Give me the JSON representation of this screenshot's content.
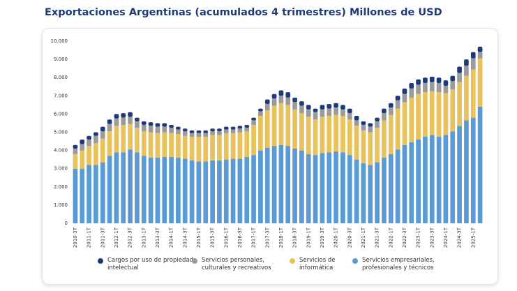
{
  "chart_data": {
    "type": "stacked-bar",
    "title": "Exportaciones Argentinas (acumulados 4 trimestres) Millones de USD",
    "categories": [
      "2010-3T",
      null,
      "2011-1T",
      null,
      "2011-3T",
      null,
      "2012-1T",
      null,
      "2012-3T",
      null,
      "2013-1T",
      null,
      "2013-3T",
      null,
      "2014-1T",
      null,
      "2014-3T",
      null,
      "2015-1T",
      null,
      "2015-3T",
      null,
      "2016-1T",
      null,
      "2016-3T",
      null,
      "2017-1T",
      null,
      "2017-3T",
      null,
      "2018-1T",
      null,
      "2018-3T",
      null,
      "2019-1T",
      null,
      "2019-3T",
      null,
      "2020-1T",
      null,
      "2020-3T",
      null,
      "2021-1T",
      null,
      "2021-3T",
      null,
      "2022-1T",
      null,
      "2022-3T",
      null,
      "2023-1T",
      null,
      "2023-3T",
      null,
      "2024-1T",
      null,
      "2024-3T",
      null,
      "2025-1T",
      null
    ],
    "series": [
      {
        "name": "Servicios empresariales, profesionales y técnicos",
        "color": "#5b9bd5",
        "values": [
          3000,
          3000,
          3200,
          3200,
          3350,
          3700,
          3900,
          3900,
          4050,
          3900,
          3700,
          3600,
          3600,
          3650,
          3650,
          3600,
          3550,
          3450,
          3400,
          3400,
          3450,
          3450,
          3500,
          3550,
          3550,
          3650,
          3750,
          4000,
          4150,
          4250,
          4300,
          4250,
          4100,
          4000,
          3800,
          3750,
          3850,
          3900,
          3950,
          3900,
          3750,
          3500,
          3300,
          3200,
          3350,
          3600,
          3800,
          4050,
          4300,
          4450,
          4600,
          4750,
          4850,
          4750,
          4850,
          5050,
          5350,
          5650,
          5800,
          6400
        ]
      },
      {
        "name": "Servicios de informática",
        "color": "#e9c25b",
        "values": [
          800,
          1000,
          1050,
          1200,
          1300,
          1350,
          1450,
          1500,
          1400,
          1350,
          1350,
          1400,
          1350,
          1350,
          1300,
          1300,
          1250,
          1300,
          1350,
          1350,
          1400,
          1400,
          1450,
          1400,
          1450,
          1400,
          1650,
          1900,
          2050,
          2200,
          2300,
          2250,
          2150,
          2050,
          2050,
          1950,
          2000,
          2000,
          2000,
          2000,
          1950,
          1850,
          1800,
          1800,
          1900,
          2050,
          2150,
          2250,
          2350,
          2450,
          2500,
          2450,
          2400,
          2450,
          2300,
          2300,
          2400,
          2450,
          2650,
          2650
        ]
      },
      {
        "name": "Servicios personales, culturales y recreativos",
        "color": "#9b9b9b",
        "values": [
          300,
          350,
          350,
          400,
          400,
          400,
          400,
          400,
          400,
          350,
          350,
          350,
          350,
          300,
          300,
          250,
          250,
          200,
          200,
          200,
          200,
          200,
          200,
          200,
          200,
          200,
          250,
          250,
          350,
          400,
          400,
          400,
          400,
          400,
          400,
          400,
          400,
          400,
          400,
          350,
          350,
          300,
          300,
          300,
          350,
          400,
          400,
          450,
          450,
          500,
          500,
          500,
          500,
          500,
          400,
          450,
          500,
          550,
          600,
          350
        ]
      },
      {
        "name": "Cargos por uso de propiedad intelectual",
        "color": "#1f3a7a",
        "values": [
          200,
          250,
          200,
          200,
          250,
          250,
          250,
          250,
          250,
          200,
          200,
          200,
          200,
          200,
          150,
          150,
          150,
          150,
          150,
          150,
          150,
          150,
          150,
          150,
          150,
          150,
          150,
          150,
          250,
          250,
          300,
          300,
          250,
          250,
          250,
          200,
          250,
          250,
          250,
          250,
          250,
          250,
          200,
          200,
          200,
          250,
          250,
          250,
          300,
          300,
          300,
          300,
          300,
          300,
          300,
          300,
          350,
          350,
          350,
          300
        ]
      }
    ],
    "ylim": [
      0,
      10000
    ],
    "yticks": [
      0,
      {
        "value": 1000,
        "label": "1.000"
      },
      {
        "value": 2000,
        "label": "2.000"
      },
      {
        "value": 3000,
        "label": "3.000"
      },
      {
        "value": 4000,
        "label": "4.000"
      },
      {
        "value": 5000,
        "label": "5.000"
      },
      {
        "value": 6000,
        "label": "6.000"
      },
      {
        "value": 7000,
        "label": "7.000"
      },
      {
        "value": 8000,
        "label": "8.000"
      },
      {
        "value": 9000,
        "label": "9.000"
      },
      {
        "value": 10000,
        "label": "10.000"
      }
    ],
    "grid": false,
    "legend": "bottom"
  }
}
